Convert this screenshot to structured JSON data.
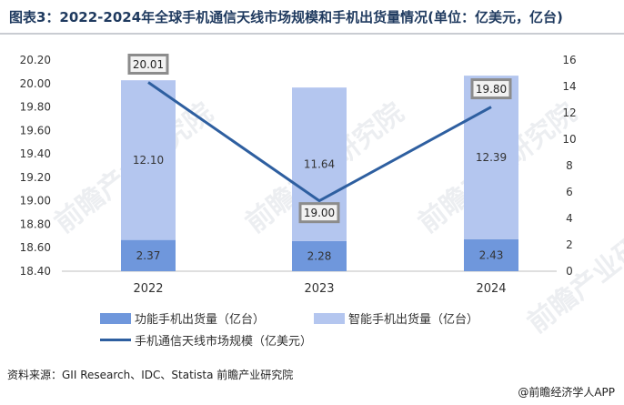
{
  "title": "图表3：2022-2024年全球手机通信天线市场规模和手机出货量情况(单位：亿美元，亿台)",
  "source": "资料来源：GII Research、IDC、Statista 前瞻产业研究院",
  "footer": "@前瞻经济学人APP",
  "watermark": "前瞻产业研究院",
  "colors": {
    "feature_phone": "#6f97dc",
    "smart_phone": "#b4c6ef",
    "line": "#2e5fa0",
    "label_box_border": "#8c8c8c",
    "label_box_fill": "#f2f2f2"
  },
  "chart_data": {
    "type": "bar",
    "categories": [
      "2022",
      "2023",
      "2024"
    ],
    "series": [
      {
        "name": "功能手机出货量（亿台）",
        "type": "stacked-bar",
        "axis": "right",
        "values": [
          2.37,
          2.28,
          2.43
        ]
      },
      {
        "name": "智能手机出货量（亿台）",
        "type": "stacked-bar",
        "axis": "right",
        "values": [
          12.1,
          11.64,
          12.39
        ]
      },
      {
        "name": "手机通信天线市场规模（亿美元）",
        "type": "line",
        "axis": "left",
        "values": [
          20.01,
          19.0,
          19.8
        ]
      }
    ],
    "y_left": {
      "min": 18.4,
      "max": 20.2,
      "ticks": [
        "18.40",
        "18.60",
        "18.80",
        "19.00",
        "19.20",
        "19.40",
        "19.60",
        "19.80",
        "20.00",
        "20.20"
      ]
    },
    "y_right": {
      "min": 0,
      "max": 16,
      "ticks": [
        "0",
        "2",
        "4",
        "6",
        "8",
        "10",
        "12",
        "14",
        "16"
      ]
    },
    "bar_labels": {
      "feature_phone": [
        "2.37",
        "2.28",
        "2.43"
      ],
      "smart_phone": [
        "12.10",
        "11.64",
        "12.39"
      ],
      "line": [
        "20.01",
        "19.00",
        "19.80"
      ]
    },
    "legend": [
      "功能手机出货量（亿台）",
      "智能手机出货量（亿台）",
      "手机通信天线市场规模（亿美元）"
    ],
    "grid": false,
    "legend_position": "bottom"
  }
}
